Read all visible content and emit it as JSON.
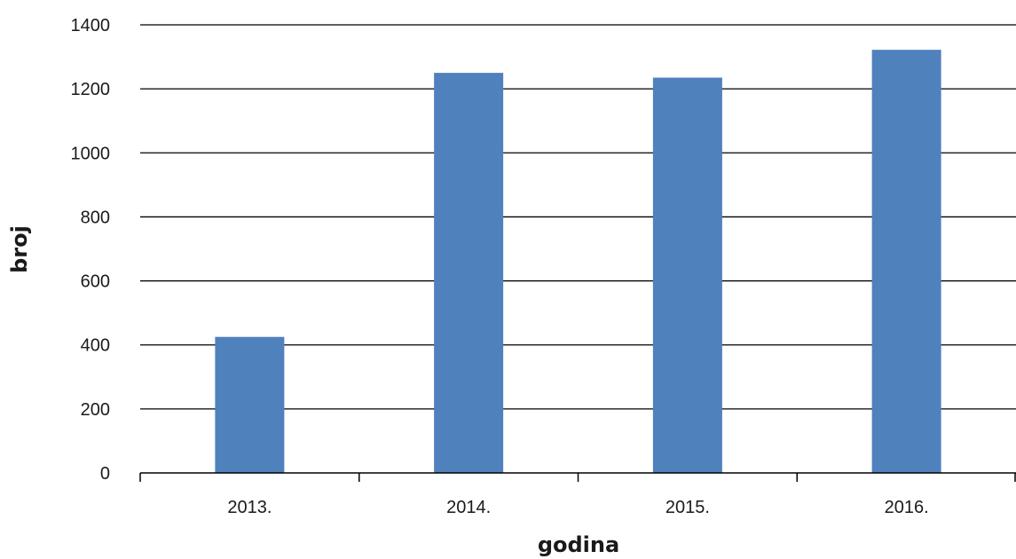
{
  "chart_data": {
    "type": "bar",
    "title": "",
    "xlabel": "godina",
    "ylabel": "broj",
    "categories": [
      "2013.",
      "2014.",
      "2015.",
      "2016."
    ],
    "values": [
      425,
      1250,
      1235,
      1322
    ],
    "ylim": [
      0,
      1400
    ],
    "yticks": [
      0,
      200,
      400,
      600,
      800,
      1000,
      1200,
      1400
    ],
    "grid": true,
    "legend": "none",
    "colors": {
      "bar": "#4f81bd",
      "grid": "#000000",
      "axis": "#000000"
    }
  }
}
